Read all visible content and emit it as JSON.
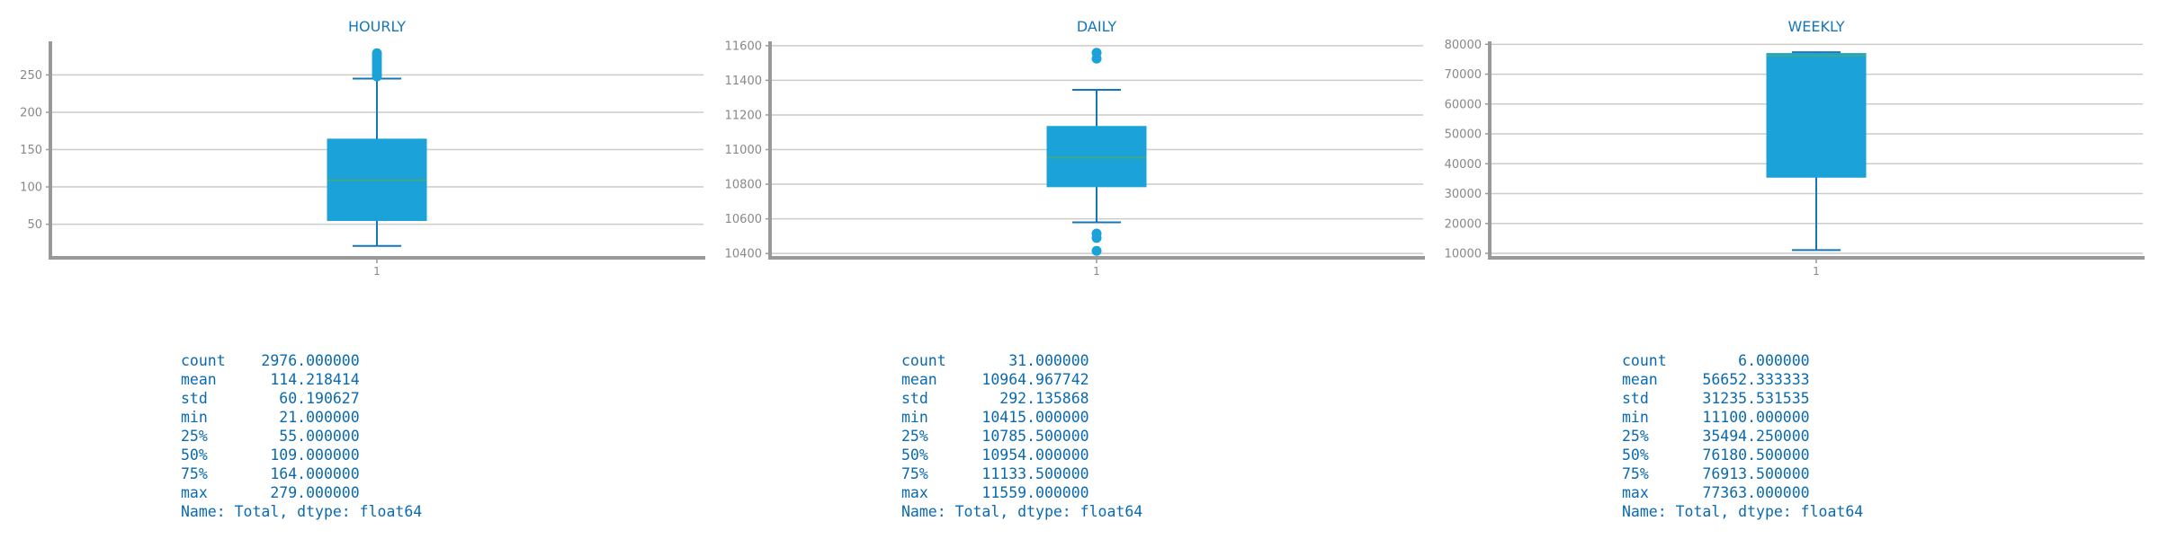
{
  "chart_data": [
    {
      "type": "box",
      "title": "HOURLY",
      "categories": [
        "1"
      ],
      "yticks": [
        50,
        100,
        150,
        200,
        250
      ],
      "ylim": [
        5,
        295
      ],
      "box": {
        "whisker_low": 21,
        "q1": 55,
        "median": 109,
        "q3": 164,
        "whisker_high": 245
      },
      "outliers": [
        248,
        252,
        256,
        260,
        264,
        268,
        272,
        276,
        279
      ],
      "grid": true
    },
    {
      "type": "box",
      "title": "DAILY",
      "categories": [
        "1"
      ],
      "yticks": [
        10400,
        10600,
        10800,
        11000,
        11200,
        11400,
        11600
      ],
      "ylim": [
        10375,
        11625
      ],
      "box": {
        "whisker_low": 10580,
        "q1": 10785.5,
        "median": 10954,
        "q3": 11133.5,
        "whisker_high": 11345
      },
      "outliers": [
        10415,
        10490,
        10515,
        11525,
        11559
      ],
      "grid": true
    },
    {
      "type": "box",
      "title": "WEEKLY",
      "categories": [
        "1"
      ],
      "yticks": [
        10000,
        20000,
        30000,
        40000,
        50000,
        60000,
        70000,
        80000
      ],
      "ylim": [
        8500,
        81000
      ],
      "box": {
        "whisker_low": 11100,
        "q1": 35494.25,
        "median": 76180.5,
        "q3": 76913.5,
        "whisker_high": 77363
      },
      "outliers": [],
      "grid": true
    }
  ],
  "stats": [
    [
      "count    2976.000000",
      "mean      114.218414",
      "std        60.190627",
      "min        21.000000",
      "25%        55.000000",
      "50%       109.000000",
      "75%       164.000000",
      "max       279.000000",
      "Name: Total, dtype: float64"
    ],
    [
      "count       31.000000",
      "mean     10964.967742",
      "std        292.135868",
      "min      10415.000000",
      "25%      10785.500000",
      "50%      10954.000000",
      "75%      11133.500000",
      "max      11559.000000",
      "Name: Total, dtype: float64"
    ],
    [
      "count        6.000000",
      "mean     56652.333333",
      "std      31235.531535",
      "min      11100.000000",
      "25%      35494.250000",
      "50%      76180.500000",
      "75%      76913.500000",
      "max      77363.000000",
      "Name: Total, dtype: float64"
    ]
  ],
  "colors": {
    "box_fill": "#1ba2d8",
    "whisker": "#1776b8",
    "median": "#3fa98a",
    "outlier": "#1ba2d8",
    "title": "#1776b8",
    "axis": "#999999",
    "grid": "#cccccc",
    "tick_label": "#888888",
    "stats_text": "#0a6ab0"
  }
}
